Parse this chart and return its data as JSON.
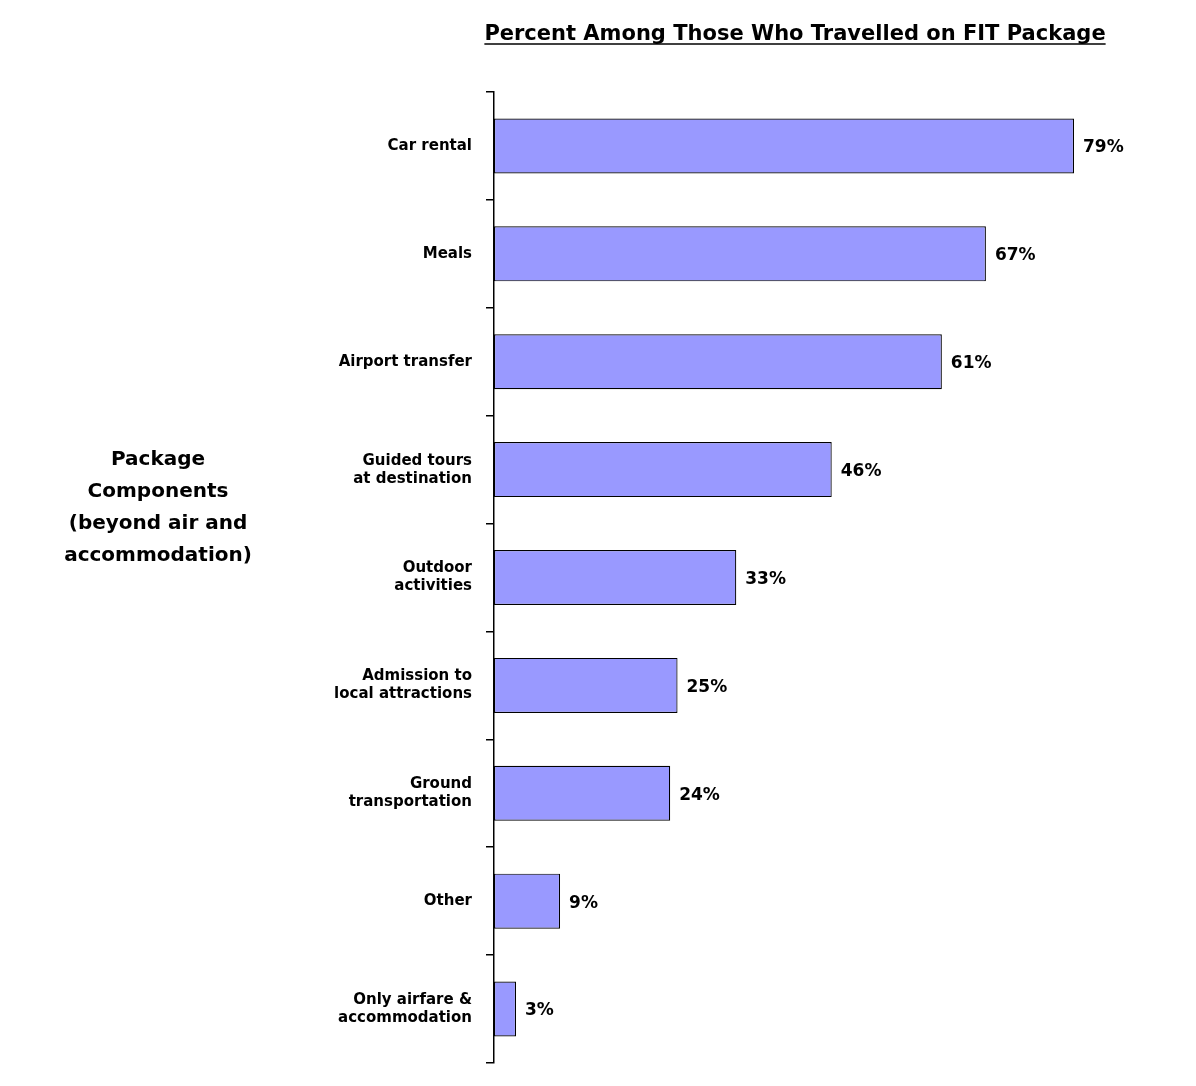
{
  "chart_data": {
    "type": "bar",
    "orientation": "horizontal",
    "title": "Percent Among Those Who Travelled on FIT Package",
    "ylabel": "Package Components (beyond air and accommodation)",
    "categories": [
      "Car rental",
      "Meals",
      "Airport transfer",
      "Guided tours at destination",
      "Outdoor activities",
      "Admission to local attractions",
      "Ground transportation",
      "Other",
      "Only airfare & accommodation"
    ],
    "values": [
      79,
      67,
      61,
      46,
      33,
      25,
      24,
      9,
      3
    ],
    "value_labels": [
      "79%",
      "67%",
      "61%",
      "46%",
      "33%",
      "25%",
      "24%",
      "9%",
      "3%"
    ],
    "color": "#9999ff",
    "grid": false,
    "legend": false
  }
}
